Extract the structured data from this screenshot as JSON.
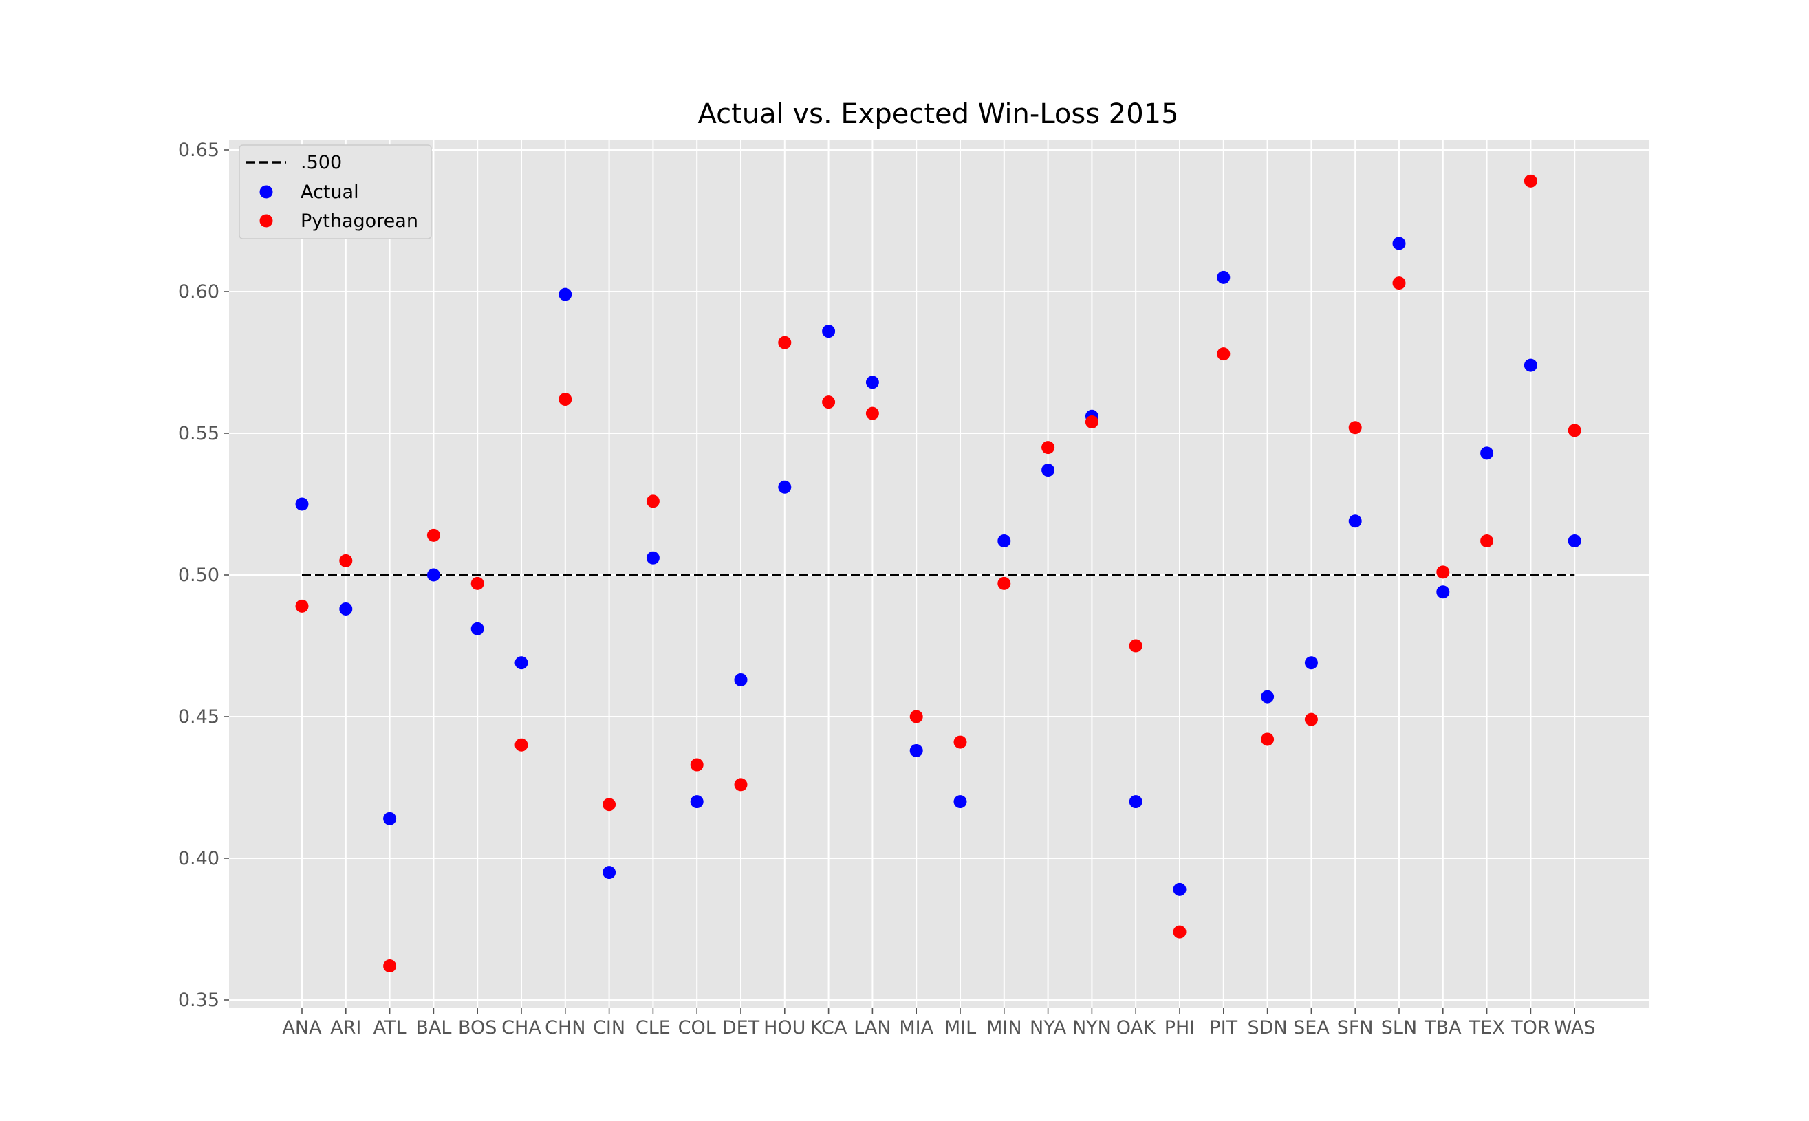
{
  "chart_data": {
    "type": "scatter",
    "title": "Actual vs. Expected Win-Loss 2015",
    "xlabel": "",
    "ylabel": "",
    "ylim": [
      0.345,
      0.655
    ],
    "y_ticks": [
      "0.35",
      "0.40",
      "0.45",
      "0.50",
      "0.55",
      "0.60",
      "0.65"
    ],
    "grid": true,
    "legend_position": "top-left",
    "categories": [
      "ANA",
      "ARI",
      "ATL",
      "BAL",
      "BOS",
      "CHA",
      "CHN",
      "CIN",
      "CLE",
      "COL",
      "DET",
      "HOU",
      "KCA",
      "LAN",
      "MIA",
      "MIL",
      "MIN",
      "NYA",
      "NYN",
      "OAK",
      "PHI",
      "PIT",
      "SDN",
      "SEA",
      "SFN",
      "SLN",
      "TBA",
      "TEX",
      "TOR",
      "WAS"
    ],
    "reference_line": {
      "name": ".500",
      "value": 0.5,
      "color": "#000000",
      "style": "dashed"
    },
    "series": [
      {
        "name": "Actual",
        "color": "#0000ff",
        "values": [
          0.525,
          0.488,
          0.414,
          0.5,
          0.481,
          0.469,
          0.599,
          0.395,
          0.506,
          0.42,
          0.463,
          0.531,
          0.586,
          0.568,
          0.438,
          0.42,
          0.512,
          0.537,
          0.556,
          0.42,
          0.389,
          0.605,
          0.457,
          0.469,
          0.519,
          0.617,
          0.494,
          0.543,
          0.574,
          0.512
        ]
      },
      {
        "name": "Pythagorean",
        "color": "#ff0000",
        "values": [
          0.489,
          0.505,
          0.362,
          0.514,
          0.497,
          0.44,
          0.562,
          0.419,
          0.526,
          0.433,
          0.426,
          0.582,
          0.561,
          0.557,
          0.45,
          0.441,
          0.497,
          0.545,
          0.554,
          0.475,
          0.374,
          0.578,
          0.442,
          0.449,
          0.552,
          0.603,
          0.501,
          0.512,
          0.639,
          0.551
        ]
      }
    ]
  }
}
